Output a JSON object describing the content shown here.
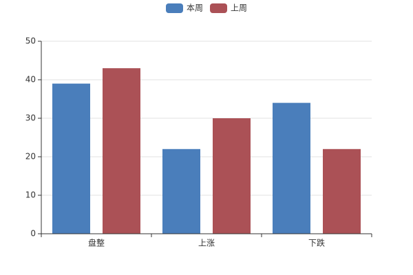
{
  "chart_data": {
    "type": "bar",
    "categories": [
      "盘整",
      "上涨",
      "下跌"
    ],
    "series": [
      {
        "name": "本周",
        "color": "#4a7ebb",
        "values": [
          39,
          22,
          34
        ]
      },
      {
        "name": "上周",
        "color": "#ab5156",
        "values": [
          43,
          30,
          22
        ]
      }
    ],
    "ylim": [
      0,
      50
    ],
    "yticks": [
      0,
      10,
      20,
      30,
      40,
      50
    ],
    "grid": true,
    "legend": "top"
  }
}
